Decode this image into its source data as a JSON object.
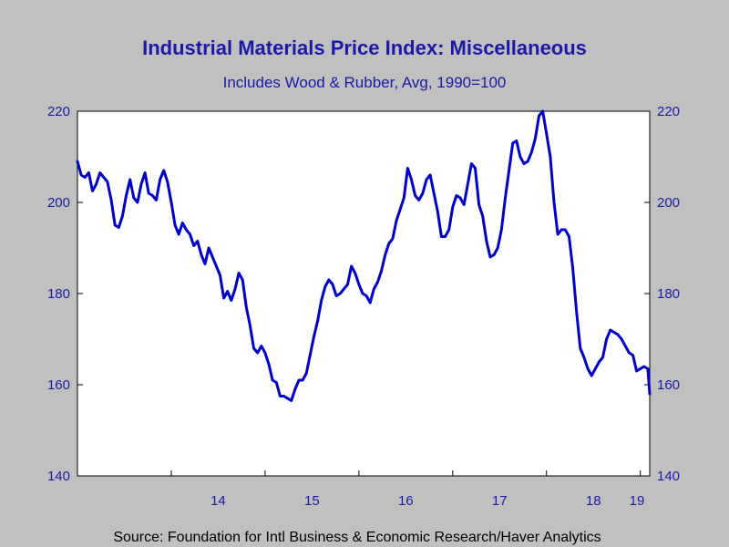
{
  "header": {
    "title": "Industrial Materials Price Index: Miscellaneous",
    "subtitle": "Includes Wood & Rubber, Avg, 1990=100"
  },
  "footer": {
    "source": "Source:  Foundation for Intl Business & Economic Research/Haver Analytics"
  },
  "colors": {
    "background": "#c0c0c0",
    "plot_background": "#ffffff",
    "series": "#0000cc",
    "text": "#1a1aa6"
  },
  "chart_data": {
    "type": "line",
    "title": "Industrial Materials Price Index: Miscellaneous",
    "subtitle": "Includes Wood & Rubber, Avg, 1990=100",
    "xlabel": "",
    "ylabel": "",
    "ylim": [
      140,
      220
    ],
    "yticks": [
      140,
      160,
      180,
      200,
      220
    ],
    "y_axis_both_sides": true,
    "xlim": [
      2013.0,
      2019.1
    ],
    "year_labels": [
      {
        "label": "14",
        "year": 2014
      },
      {
        "label": "15",
        "year": 2015
      },
      {
        "label": "16",
        "year": 2016
      },
      {
        "label": "17",
        "year": 2017
      },
      {
        "label": "18",
        "year": 2018
      },
      {
        "label": "19",
        "year": 2019
      }
    ],
    "grid": false,
    "legend": "none",
    "series": [
      {
        "x": [
          2013.0,
          2013.04,
          2013.08,
          2013.12,
          2013.16,
          2013.2,
          2013.24,
          2013.28,
          2013.32,
          2013.36,
          2013.4,
          2013.44,
          2013.48,
          2013.52,
          2013.56,
          2013.6,
          2013.64,
          2013.68,
          2013.72,
          2013.76,
          2013.8,
          2013.84,
          2013.88,
          2013.92,
          2013.96,
          2014.0,
          2014.04,
          2014.08,
          2014.12,
          2014.16,
          2014.2,
          2014.24,
          2014.28,
          2014.32,
          2014.36,
          2014.4,
          2014.44,
          2014.48,
          2014.52,
          2014.56,
          2014.6,
          2014.64,
          2014.68,
          2014.72,
          2014.76,
          2014.8,
          2014.84,
          2014.88,
          2014.92,
          2014.96,
          2015.0,
          2015.04,
          2015.08,
          2015.12,
          2015.16,
          2015.2,
          2015.24,
          2015.28,
          2015.32,
          2015.36,
          2015.4,
          2015.44,
          2015.48,
          2015.52,
          2015.56,
          2015.6,
          2015.64,
          2015.68,
          2015.72,
          2015.76,
          2015.8,
          2015.84,
          2015.88,
          2015.92,
          2015.96,
          2016.0,
          2016.04,
          2016.08,
          2016.12,
          2016.16,
          2016.2,
          2016.24,
          2016.28,
          2016.32,
          2016.36,
          2016.4,
          2016.44,
          2016.48,
          2016.52,
          2016.56,
          2016.6,
          2016.64,
          2016.68,
          2016.72,
          2016.76,
          2016.8,
          2016.84,
          2016.88,
          2016.92,
          2016.96,
          2017.0,
          2017.04,
          2017.08,
          2017.12,
          2017.16,
          2017.2,
          2017.24,
          2017.28,
          2017.32,
          2017.36,
          2017.4,
          2017.44,
          2017.48,
          2017.52,
          2017.56,
          2017.6,
          2017.64,
          2017.68,
          2017.72,
          2017.76,
          2017.8,
          2017.84,
          2017.88,
          2017.92,
          2017.96,
          2018.0,
          2018.04,
          2018.08,
          2018.12,
          2018.16,
          2018.2,
          2018.24,
          2018.28,
          2018.32,
          2018.36,
          2018.4,
          2018.44,
          2018.48,
          2018.52,
          2018.56,
          2018.6,
          2018.64,
          2018.68,
          2018.72,
          2018.76,
          2018.8,
          2018.84,
          2018.88,
          2018.92,
          2018.96,
          2019.0,
          2019.04,
          2019.08,
          2019.1
        ],
        "values": [
          209,
          206,
          205.5,
          206.5,
          202.5,
          204,
          206.5,
          205.5,
          204.5,
          200.5,
          195,
          194.5,
          197,
          201.5,
          205,
          201,
          200,
          204,
          206.5,
          202,
          201.5,
          200.5,
          205,
          207,
          204.5,
          200,
          195,
          193,
          195.5,
          194,
          193,
          190.5,
          191.5,
          188.5,
          186.5,
          190,
          188,
          186,
          184,
          179,
          180.5,
          178.5,
          181,
          184.5,
          183,
          177,
          173,
          168,
          167,
          168.5,
          167,
          164.5,
          161,
          160.5,
          157.5,
          157.5,
          157,
          156.5,
          159,
          161,
          161,
          162.5,
          166.5,
          170.5,
          174,
          178.5,
          181.5,
          183,
          182,
          179.5,
          180,
          181,
          182,
          186,
          184.5,
          182,
          180,
          179.5,
          178,
          181,
          182.5,
          185,
          188.5,
          191,
          192,
          196,
          198.5,
          201,
          207.5,
          205,
          201.5,
          200.5,
          202,
          205,
          206,
          202,
          198,
          192.5,
          192.5,
          194,
          199,
          201.5,
          201,
          199.5,
          204,
          208.5,
          207.5,
          199.5,
          197,
          191.5,
          188,
          188.5,
          190,
          194,
          201,
          207,
          213,
          213.5,
          210,
          208.5,
          209,
          211,
          214,
          219,
          220,
          215,
          210,
          200,
          193,
          194,
          194,
          192.5,
          185.5,
          176,
          168,
          166,
          163.5,
          162,
          163.5,
          165,
          166,
          170,
          172,
          171.5,
          171,
          170,
          168.5,
          167,
          166.5,
          163,
          163.5,
          164,
          163.5,
          158
        ]
      }
    ]
  }
}
